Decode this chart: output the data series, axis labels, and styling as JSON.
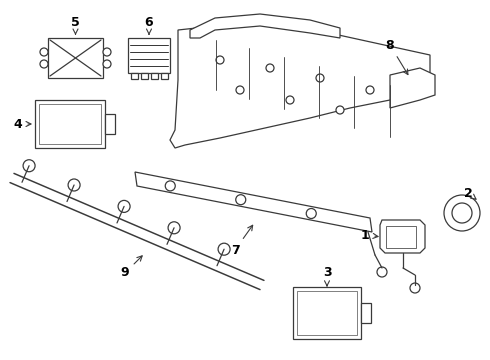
{
  "background_color": "#ffffff",
  "line_color": "#3a3a3a",
  "text_color": "#000000",
  "fig_width": 4.9,
  "fig_height": 3.6,
  "dpi": 100
}
